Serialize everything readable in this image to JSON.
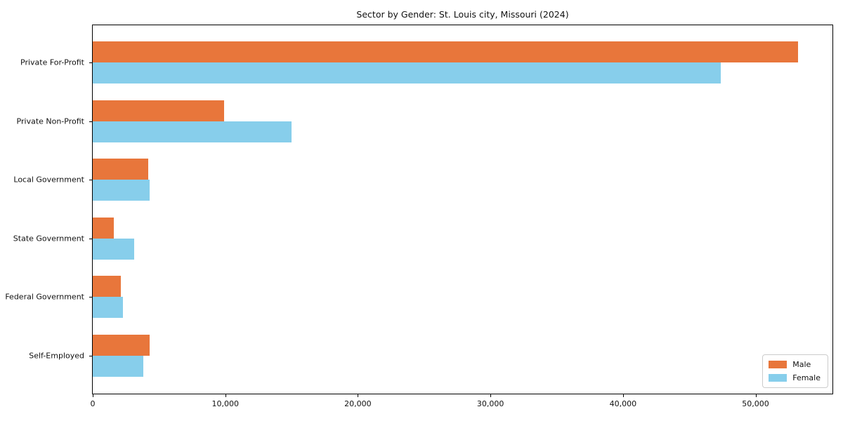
{
  "chart_data": {
    "type": "bar",
    "orientation": "horizontal",
    "title": "Sector by Gender: St. Louis city, Missouri (2024)",
    "categories": [
      "Private For-Profit",
      "Private Non-Profit",
      "Local Government",
      "State Government",
      "Federal Government",
      "Self-Employed"
    ],
    "series": [
      {
        "name": "Male",
        "color": "#E8763B",
        "values": [
          53200,
          9900,
          4200,
          1600,
          2100,
          4300
        ]
      },
      {
        "name": "Female",
        "color": "#87CEEB",
        "values": [
          47400,
          15000,
          4300,
          3100,
          2300,
          3800
        ]
      }
    ],
    "xlabel": "",
    "ylabel": "",
    "xlim": [
      0,
      55800
    ],
    "xticks": [
      {
        "value": 0,
        "label": "0"
      },
      {
        "value": 10000,
        "label": "10,000"
      },
      {
        "value": 20000,
        "label": "20,000"
      },
      {
        "value": 30000,
        "label": "30,000"
      },
      {
        "value": 40000,
        "label": "40,000"
      },
      {
        "value": 50000,
        "label": "50,000"
      }
    ],
    "grid": false,
    "legend": {
      "position": "lower right"
    }
  }
}
